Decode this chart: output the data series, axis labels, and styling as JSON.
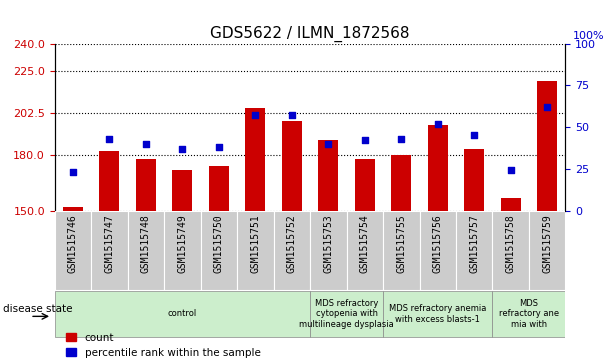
{
  "title": "GDS5622 / ILMN_1872568",
  "categories": [
    "GSM1515746",
    "GSM1515747",
    "GSM1515748",
    "GSM1515749",
    "GSM1515750",
    "GSM1515751",
    "GSM1515752",
    "GSM1515753",
    "GSM1515754",
    "GSM1515755",
    "GSM1515756",
    "GSM1515757",
    "GSM1515758",
    "GSM1515759"
  ],
  "bar_values": [
    152,
    182,
    178,
    172,
    174,
    205,
    198,
    188,
    178,
    180,
    196,
    183,
    157,
    220
  ],
  "scatter_values": [
    23,
    43,
    40,
    37,
    38,
    57,
    57,
    40,
    42,
    43,
    52,
    45,
    24,
    62
  ],
  "ylim_left": [
    150,
    240
  ],
  "ylim_right": [
    0,
    100
  ],
  "yticks_left": [
    150,
    180,
    202.5,
    225,
    240
  ],
  "yticks_right": [
    0,
    25,
    50,
    75,
    100
  ],
  "bar_color": "#cc0000",
  "scatter_color": "#0000cc",
  "disease_groups": [
    {
      "label": "control",
      "start": 0,
      "end": 7
    },
    {
      "label": "MDS refractory\ncytopenia with\nmultilineage dysplasia",
      "start": 7,
      "end": 9
    },
    {
      "label": "MDS refractory anemia\nwith excess blasts-1",
      "start": 9,
      "end": 12
    },
    {
      "label": "MDS\nrefractory ane\nmia with",
      "start": 12,
      "end": 14
    }
  ],
  "xlabel_disease": "disease state",
  "legend_bar_label": "count",
  "legend_scatter_label": "percentile rank within the sample",
  "title_fontsize": 11,
  "tick_fontsize": 8,
  "xtick_fontsize": 7,
  "gray_bg": "#cccccc",
  "disease_bg": "#cceecc",
  "n_cats": 14
}
